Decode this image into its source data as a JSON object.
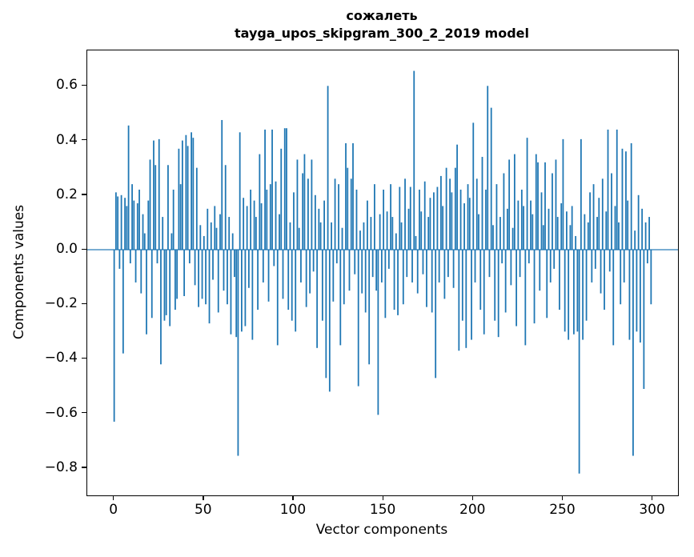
{
  "chart_data": {
    "type": "bar",
    "title": "сожалеть",
    "subtitle": "tayga_upos_skipgram_300_2_2019 model",
    "xlabel": "Vector components",
    "ylabel": "Components values",
    "bar_color": "#1f77b4",
    "xlim": [
      -15,
      314
    ],
    "ylim": [
      -0.9,
      0.73
    ],
    "x_ticks": [
      {
        "value": 0,
        "label": "0"
      },
      {
        "value": 50,
        "label": "50"
      },
      {
        "value": 100,
        "label": "100"
      },
      {
        "value": 150,
        "label": "150"
      },
      {
        "value": 200,
        "label": "200"
      },
      {
        "value": 250,
        "label": "250"
      },
      {
        "value": 300,
        "label": "300"
      }
    ],
    "y_ticks": [
      {
        "value": 0.6,
        "label": "0.6"
      },
      {
        "value": 0.4,
        "label": "0.4"
      },
      {
        "value": 0.2,
        "label": "0.2"
      },
      {
        "value": 0.0,
        "label": "0.0"
      },
      {
        "value": -0.2,
        "label": "−0.2"
      },
      {
        "value": -0.4,
        "label": "−0.4"
      },
      {
        "value": -0.6,
        "label": "−0.6"
      },
      {
        "value": -0.8,
        "label": "−0.8"
      }
    ],
    "values": [
      -0.63,
      0.21,
      0.195,
      -0.07,
      0.2,
      -0.38,
      0.19,
      0.16,
      0.455,
      -0.05,
      0.24,
      0.18,
      -0.12,
      0.17,
      0.22,
      -0.16,
      0.13,
      0.06,
      -0.31,
      0.18,
      0.33,
      -0.25,
      0.4,
      0.31,
      -0.05,
      0.405,
      -0.42,
      0.12,
      -0.26,
      -0.24,
      0.31,
      -0.28,
      0.06,
      0.22,
      -0.22,
      -0.18,
      0.37,
      0.24,
      0.4,
      -0.17,
      0.42,
      0.38,
      -0.05,
      0.43,
      0.41,
      -0.13,
      0.3,
      -0.21,
      0.09,
      -0.18,
      0.05,
      -0.2,
      0.15,
      -0.27,
      0.1,
      -0.11,
      0.16,
      0.08,
      -0.23,
      0.13,
      0.475,
      -0.15,
      0.31,
      -0.2,
      0.12,
      -0.31,
      0.06,
      -0.1,
      -0.32,
      -0.755,
      0.43,
      -0.3,
      0.19,
      -0.28,
      0.16,
      -0.14,
      0.22,
      -0.33,
      0.18,
      0.12,
      -0.22,
      0.35,
      0.17,
      -0.12,
      0.44,
      0.22,
      -0.19,
      0.24,
      0.44,
      -0.06,
      0.25,
      -0.35,
      0.13,
      0.37,
      -0.18,
      0.445,
      0.445,
      -0.22,
      0.1,
      -0.26,
      0.21,
      -0.3,
      0.33,
      0.08,
      -0.12,
      0.28,
      0.35,
      -0.21,
      0.26,
      -0.16,
      0.33,
      -0.08,
      0.2,
      -0.36,
      0.15,
      0.1,
      -0.26,
      0.18,
      -0.47,
      0.6,
      -0.52,
      0.1,
      -0.19,
      0.26,
      -0.05,
      0.24,
      -0.35,
      0.08,
      -0.2,
      0.39,
      0.3,
      -0.15,
      0.26,
      0.39,
      -0.09,
      0.22,
      -0.5,
      0.07,
      -0.16,
      0.1,
      -0.23,
      0.18,
      -0.42,
      0.12,
      -0.1,
      0.24,
      -0.15,
      -0.605,
      0.13,
      -0.12,
      0.22,
      -0.25,
      0.14,
      -0.07,
      0.24,
      0.12,
      -0.22,
      0.06,
      -0.24,
      0.23,
      0.1,
      -0.2,
      0.26,
      -0.1,
      0.15,
      0.23,
      -0.12,
      0.655,
      0.05,
      -0.16,
      0.22,
      0.14,
      -0.09,
      0.25,
      -0.21,
      0.12,
      0.19,
      -0.23,
      0.21,
      -0.47,
      0.23,
      -0.12,
      0.27,
      0.16,
      -0.18,
      0.3,
      -0.1,
      0.26,
      0.21,
      -0.14,
      0.3,
      0.385,
      -0.37,
      0.22,
      -0.26,
      0.17,
      -0.36,
      0.24,
      0.19,
      -0.33,
      0.465,
      -0.12,
      0.26,
      0.13,
      -0.22,
      0.34,
      -0.31,
      0.22,
      0.6,
      -0.1,
      0.52,
      0.09,
      -0.26,
      0.24,
      -0.32,
      0.12,
      -0.05,
      0.28,
      -0.23,
      0.15,
      0.33,
      -0.13,
      0.08,
      0.35,
      -0.28,
      0.18,
      -0.1,
      0.22,
      0.16,
      -0.35,
      0.41,
      -0.05,
      0.18,
      0.13,
      -0.27,
      0.35,
      0.32,
      -0.15,
      0.21,
      0.09,
      0.32,
      -0.25,
      0.15,
      -0.12,
      0.28,
      -0.07,
      0.33,
      0.12,
      -0.22,
      0.17,
      0.405,
      -0.3,
      0.14,
      -0.33,
      0.09,
      0.16,
      -0.31,
      0.05,
      -0.3,
      -0.82,
      0.405,
      -0.33,
      0.13,
      -0.26,
      0.1,
      0.21,
      -0.12,
      0.24,
      -0.07,
      0.12,
      0.19,
      -0.16,
      0.26,
      -0.22,
      0.14,
      0.44,
      -0.08,
      0.28,
      -0.35,
      0.16,
      0.44,
      0.1,
      -0.2,
      0.37,
      -0.12,
      0.36,
      0.18,
      -0.33,
      0.39,
      -0.755,
      0.07,
      -0.3,
      0.2,
      -0.34,
      0.15,
      -0.51,
      0.1,
      -0.05,
      0.12,
      -0.2
    ]
  }
}
